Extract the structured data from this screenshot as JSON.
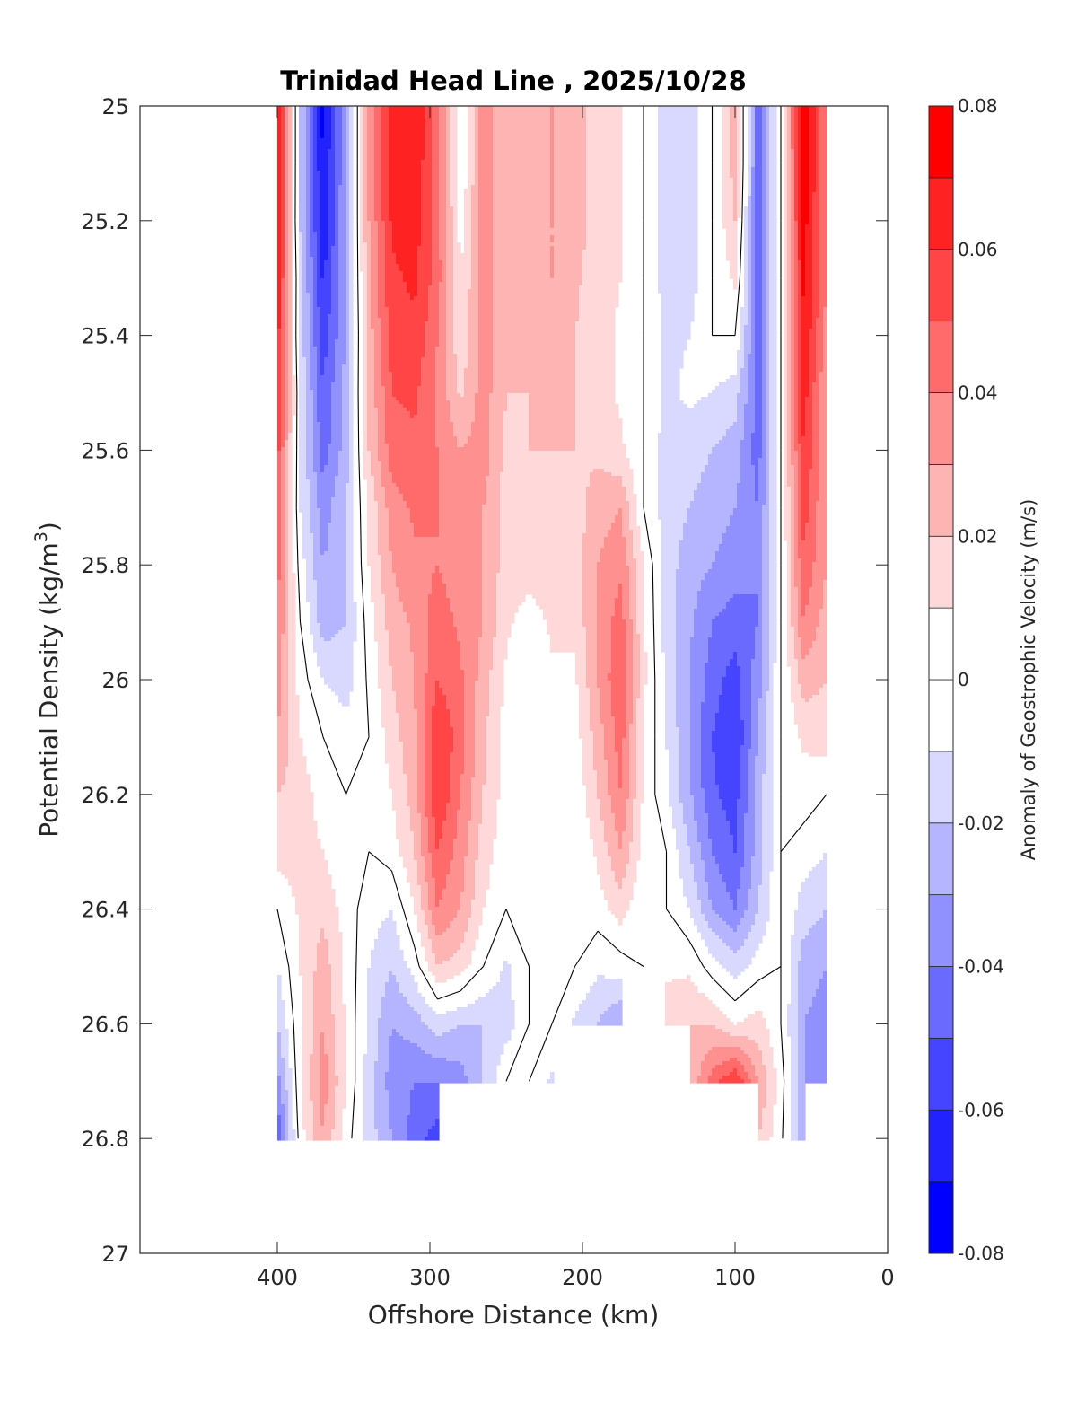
{
  "chart_data": {
    "type": "heatmap",
    "subtype": "filled-contour",
    "title": "Trinidad Head Line , 2025/10/28",
    "xlabel": "Offshore Distance (km)",
    "ylabel_main": "Potential Density (kg/m",
    "ylabel_sup": "3",
    "ylabel_close": ")",
    "xlim": [
      0,
      490
    ],
    "x_reversed": true,
    "ylim": [
      25,
      27
    ],
    "y_reversed": true,
    "xticks": [
      400,
      300,
      200,
      100,
      0
    ],
    "xtick_labels": [
      "400",
      "300",
      "200",
      "100",
      "0"
    ],
    "yticks": [
      25,
      25.2,
      25.4,
      25.6,
      25.8,
      26,
      26.2,
      26.4,
      26.6,
      26.8,
      27
    ],
    "ytick_labels": [
      "25",
      "25.2",
      "25.4",
      "25.6",
      "25.8",
      "26",
      "26.2",
      "26.4",
      "26.6",
      "26.8",
      "27"
    ],
    "colorbar": {
      "label": "Anomaly of Geostrophic Velocity (m/s)",
      "range": [
        -0.08,
        0.08
      ],
      "levels": [
        -0.08,
        -0.07,
        -0.06,
        -0.05,
        -0.04,
        -0.03,
        -0.02,
        -0.01,
        0,
        0.01,
        0.02,
        0.03,
        0.04,
        0.05,
        0.06,
        0.07,
        0.08
      ],
      "tick_values": [
        0.08,
        0.06,
        0.04,
        0.02,
        0,
        -0.02,
        -0.04,
        -0.06,
        -0.08
      ],
      "tick_labels": [
        "0.08",
        "0.06",
        "0.04",
        "0.02",
        "0",
        "-0.02",
        "-0.04",
        "-0.06",
        "-0.08"
      ],
      "colors": [
        "#0000ff",
        "#2222ff",
        "#4545ff",
        "#6a6aff",
        "#9090ff",
        "#b4b4ff",
        "#d9d9ff",
        "#ffffff",
        "#ffffff",
        "#ffd9d9",
        "#ffb4b4",
        "#ff9090",
        "#ff6a6a",
        "#ff4545",
        "#ff2222",
        "#ff0000"
      ]
    },
    "zero_contour": true,
    "x": [
      400,
      385,
      370,
      355,
      340,
      325,
      310,
      295,
      280,
      265,
      250,
      235,
      220,
      205,
      190,
      175,
      160,
      145,
      130,
      115,
      100,
      85,
      70,
      55,
      40,
      30
    ],
    "y": [
      25.0,
      25.1,
      25.2,
      25.3,
      25.4,
      25.5,
      25.6,
      25.7,
      25.8,
      25.9,
      26.0,
      26.1,
      26.2,
      26.3,
      26.4,
      26.5,
      26.6,
      26.7,
      26.8
    ],
    "values": [
      [
        0.075,
        -0.02,
        -0.075,
        -0.03,
        0.03,
        0.065,
        0.07,
        0.045,
        0.0,
        0.035,
        0.02,
        0.025,
        0.03,
        0.025,
        0.015,
        0.01,
        0.0,
        -0.015,
        -0.015,
        0.0,
        0.025,
        -0.045,
        0.0,
        0.08,
        0.04,
        null
      ],
      [
        0.075,
        -0.02,
        -0.07,
        -0.03,
        0.03,
        0.065,
        0.068,
        0.045,
        0.0,
        0.035,
        0.022,
        0.025,
        0.03,
        0.025,
        0.015,
        0.01,
        0.0,
        -0.015,
        -0.015,
        0.0,
        0.025,
        -0.045,
        0.0,
        0.078,
        0.04,
        null
      ],
      [
        0.072,
        -0.02,
        -0.068,
        -0.03,
        0.03,
        0.062,
        0.065,
        0.045,
        0.005,
        0.035,
        0.022,
        0.025,
        0.03,
        0.025,
        0.015,
        0.01,
        0.0,
        -0.015,
        -0.015,
        0.0,
        0.02,
        -0.045,
        0.0,
        0.075,
        0.04,
        null
      ],
      [
        0.07,
        -0.015,
        -0.062,
        -0.03,
        0.028,
        0.058,
        0.062,
        0.045,
        0.01,
        0.035,
        0.02,
        0.025,
        0.03,
        0.022,
        0.015,
        0.01,
        0.0,
        -0.015,
        -0.015,
        0.0,
        0.012,
        -0.045,
        0.0,
        0.072,
        0.04,
        null
      ],
      [
        0.066,
        -0.015,
        -0.055,
        -0.03,
        0.025,
        0.055,
        0.058,
        0.04,
        0.012,
        0.035,
        0.02,
        0.022,
        0.025,
        0.02,
        0.015,
        0.008,
        0.0,
        -0.012,
        -0.01,
        0.0,
        0.0,
        -0.045,
        0.0,
        0.07,
        0.035,
        null
      ],
      [
        0.06,
        -0.01,
        -0.05,
        -0.025,
        0.022,
        0.05,
        0.052,
        0.038,
        0.018,
        0.035,
        0.02,
        0.02,
        0.022,
        0.02,
        0.015,
        0.008,
        0.0,
        -0.012,
        -0.008,
        -0.01,
        -0.015,
        -0.045,
        0.0,
        0.065,
        0.03,
        null
      ],
      [
        0.055,
        -0.01,
        -0.045,
        -0.025,
        0.02,
        0.045,
        0.048,
        0.04,
        0.03,
        0.035,
        0.018,
        0.02,
        0.02,
        0.02,
        0.018,
        0.012,
        0.0,
        -0.015,
        -0.015,
        -0.02,
        -0.025,
        -0.045,
        0.0,
        0.06,
        0.03,
        null
      ],
      [
        0.05,
        -0.01,
        -0.035,
        -0.02,
        0.012,
        0.035,
        0.042,
        0.04,
        0.035,
        0.03,
        0.015,
        0.015,
        0.015,
        0.015,
        0.025,
        0.03,
        0.0,
        -0.015,
        -0.02,
        -0.025,
        -0.03,
        -0.04,
        0.0,
        0.055,
        0.03,
        null
      ],
      [
        0.045,
        -0.005,
        -0.03,
        -0.02,
        0.01,
        0.03,
        0.038,
        0.04,
        0.035,
        0.03,
        0.015,
        0.015,
        0.015,
        0.015,
        0.03,
        0.038,
        0.01,
        -0.015,
        -0.025,
        -0.03,
        -0.035,
        -0.04,
        0.0,
        0.048,
        0.03,
        null
      ],
      [
        0.04,
        0.0,
        -0.025,
        -0.02,
        0.005,
        0.025,
        0.032,
        0.045,
        0.038,
        0.03,
        0.012,
        0.005,
        0.012,
        0.012,
        0.032,
        0.045,
        0.012,
        -0.015,
        -0.028,
        -0.04,
        -0.045,
        -0.04,
        0.0,
        0.04,
        0.025,
        null
      ],
      [
        0.035,
        0.005,
        -0.01,
        -0.015,
        0.002,
        0.02,
        0.03,
        0.05,
        0.042,
        0.025,
        0.008,
        0.0,
        0.008,
        0.008,
        0.03,
        0.05,
        0.012,
        -0.012,
        -0.03,
        -0.045,
        -0.055,
        -0.035,
        0.0,
        0.025,
        0.02,
        null
      ],
      [
        0.03,
        0.01,
        0.0,
        -0.005,
        0.0,
        0.015,
        0.028,
        0.06,
        0.045,
        0.022,
        0.005,
        0.0,
        0.005,
        0.005,
        0.025,
        0.045,
        0.01,
        -0.01,
        -0.03,
        -0.05,
        -0.06,
        -0.03,
        0.0,
        0.012,
        0.015,
        null
      ],
      [
        0.02,
        0.015,
        0.005,
        0.0,
        0.0,
        0.01,
        0.025,
        0.06,
        0.04,
        0.02,
        0.005,
        0.0,
        0.002,
        0.002,
        0.02,
        0.04,
        0.008,
        -0.008,
        -0.028,
        -0.048,
        -0.055,
        -0.025,
        0.0,
        0.005,
        0.0,
        null
      ],
      [
        0.015,
        0.015,
        0.01,
        0.0,
        0.0,
        0.005,
        0.02,
        0.05,
        0.035,
        0.015,
        0.003,
        0.0,
        0.0,
        0.0,
        0.012,
        0.03,
        0.005,
        0.0,
        -0.02,
        -0.04,
        -0.05,
        -0.025,
        0.0,
        -0.005,
        -0.01,
        null
      ],
      [
        0.0,
        0.012,
        0.018,
        0.005,
        -0.005,
        -0.01,
        0.01,
        0.04,
        0.03,
        0.01,
        0.0,
        0.0,
        0.0,
        0.0,
        0.005,
        0.015,
        0.0,
        0.0,
        -0.01,
        -0.03,
        -0.04,
        -0.02,
        0.0,
        -0.015,
        -0.02,
        null
      ],
      [
        -0.01,
        0.01,
        0.025,
        0.008,
        -0.01,
        -0.02,
        -0.005,
        0.02,
        0.015,
        0.0,
        -0.012,
        0.0,
        0.0,
        0.0,
        -0.008,
        -0.005,
        0.0,
        0.008,
        0.008,
        -0.005,
        -0.015,
        -0.005,
        0.0,
        -0.025,
        -0.03,
        null
      ],
      [
        -0.02,
        0.008,
        0.03,
        0.008,
        -0.012,
        -0.03,
        -0.025,
        -0.015,
        -0.02,
        -0.02,
        -0.015,
        0.0,
        0.0,
        -0.012,
        -0.02,
        -0.03,
        null,
        0.015,
        0.02,
        0.02,
        0.01,
        0.015,
        0.0,
        -0.03,
        -0.035,
        null
      ],
      [
        -0.035,
        0.008,
        0.035,
        0.01,
        -0.015,
        -0.035,
        -0.04,
        -0.04,
        -0.035,
        -0.02,
        0.0,
        0.0,
        -0.012,
        null,
        null,
        null,
        null,
        null,
        0.02,
        0.045,
        0.06,
        0.03,
        0.005,
        -0.03,
        -0.04,
        null
      ],
      [
        -0.05,
        0.005,
        0.03,
        0.005,
        -0.015,
        -0.03,
        -0.045,
        -0.055,
        null,
        null,
        null,
        null,
        null,
        null,
        null,
        null,
        null,
        null,
        null,
        null,
        null,
        0.02,
        0.002,
        -0.025,
        null,
        null
      ]
    ]
  }
}
